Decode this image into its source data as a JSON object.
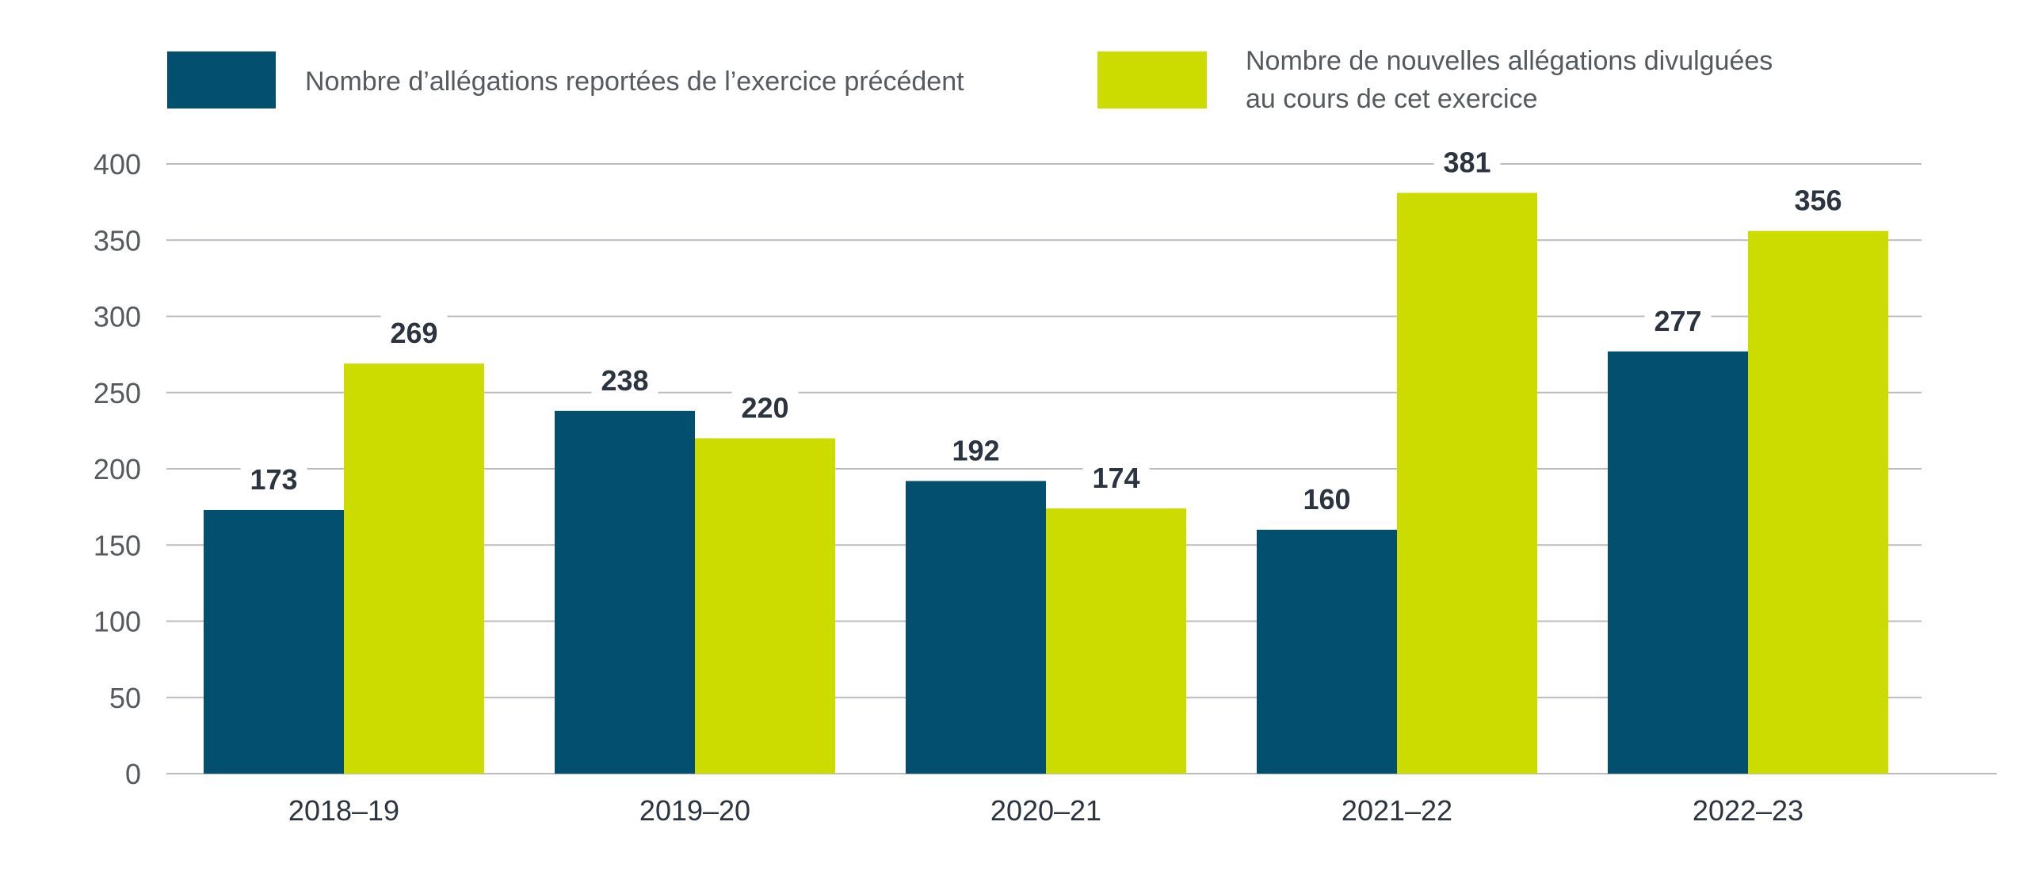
{
  "chart_data": {
    "type": "bar",
    "title": "",
    "xlabel": "",
    "ylabel": "",
    "categories": [
      "2018–19",
      "2019–20",
      "2020–21",
      "2021–22",
      "2022–23"
    ],
    "series": [
      {
        "name": "Nombre d’allégations reportées de l’exercice précédent",
        "color": "#024f6f",
        "values": [
          173,
          238,
          192,
          160,
          277
        ]
      },
      {
        "name": "Nombre de nouvelles allégations divulguées au cours de cet exercice",
        "color": "#ccdc00",
        "values": [
          269,
          220,
          174,
          381,
          356
        ]
      }
    ],
    "ylim": [
      0,
      400
    ],
    "yticks": [
      0,
      50,
      100,
      150,
      200,
      250,
      300,
      350,
      400
    ],
    "grid": true,
    "legend_position": "top",
    "data_labels": true
  },
  "legend": {
    "items": [
      {
        "label_lines": [
          "Nombre d’allégations reportées de l’exercice précédent"
        ],
        "color": "#024f6f"
      },
      {
        "label_lines": [
          "Nombre de nouvelles allégations divulguées",
          "au cours de cet exercice"
        ],
        "color": "#ccdc00"
      }
    ]
  },
  "colors": {
    "grid": "#b8bcc0",
    "axis_text": "#555a5e",
    "label_text": "#2c3440"
  }
}
